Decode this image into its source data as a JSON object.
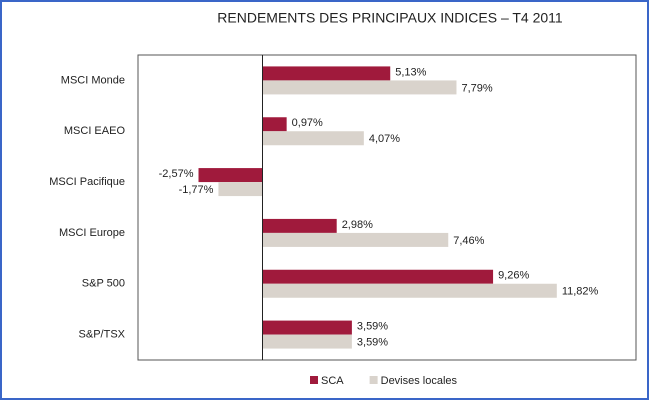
{
  "chart_data": {
    "type": "hbar",
    "title": "RENDEMENTS DES PRINCIPAUX INDICES – T4 2011",
    "categories": [
      "MSCI Monde",
      "MSCI EAEO",
      "MSCI Pacifique",
      "MSCI Europe",
      "S&P 500",
      "S&P/TSX"
    ],
    "series": [
      {
        "name": "SCA",
        "color": "#a01a3c",
        "values": [
          5.13,
          0.97,
          -2.57,
          2.98,
          9.26,
          3.59
        ],
        "value_labels": [
          "5,13%",
          "0,97%",
          "-2,57%",
          "2,98%",
          "9,26%",
          "3,59%"
        ]
      },
      {
        "name": "Devises locales",
        "color": "#d9d3cc",
        "values": [
          7.79,
          4.07,
          -1.77,
          7.46,
          11.82,
          3.59
        ],
        "value_labels": [
          "7,79%",
          "4,07%",
          "-1,77%",
          "7,46%",
          "11,82%",
          "3,59%"
        ]
      }
    ],
    "xlim": [
      -5,
      15
    ]
  }
}
